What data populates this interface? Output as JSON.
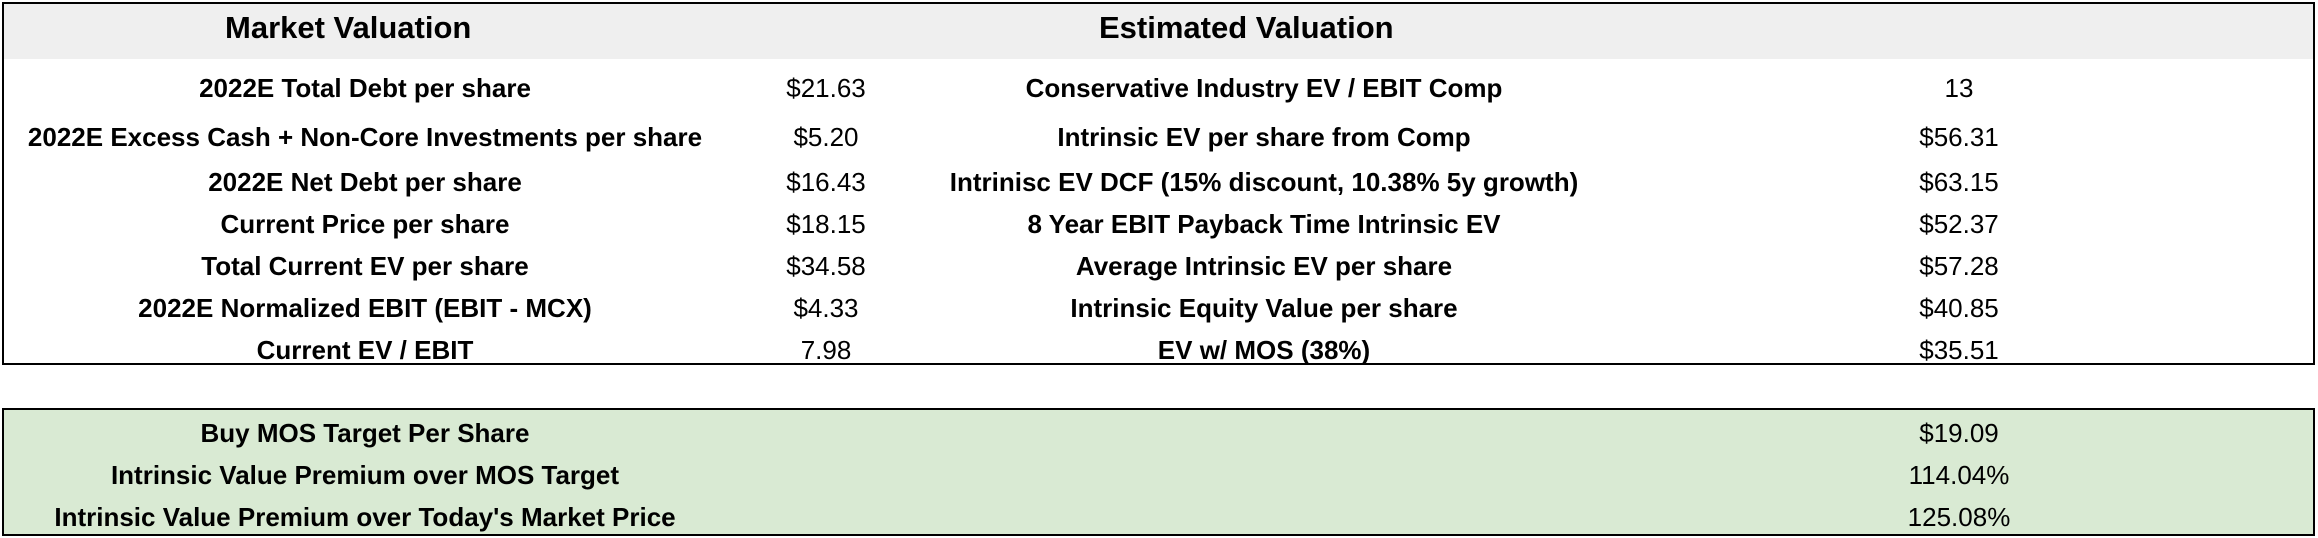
{
  "headers": {
    "market": "Market Valuation",
    "estimated": "Estimated Valuation"
  },
  "rows": [
    {
      "market_label": "2022E Total Debt per share",
      "market_value": "$21.63",
      "est_label": "Conservative Industry EV / EBIT Comp",
      "est_value": "13"
    },
    {
      "market_label": "2022E Excess Cash + Non-Core Investments per share",
      "market_value": "$5.20",
      "est_label": "Intrinsic EV per share from Comp",
      "est_value": "$56.31"
    },
    {
      "market_label": "2022E Net Debt per share",
      "market_value": "$16.43",
      "est_label": "Intrinisc EV DCF (15% discount, 10.38% 5y growth)",
      "est_value": "$63.15"
    },
    {
      "market_label": "Current Price per share",
      "market_value": "$18.15",
      "est_label": "8 Year EBIT Payback Time Intrinsic EV",
      "est_value": "$52.37"
    },
    {
      "market_label": "Total Current EV per share",
      "market_value": "$34.58",
      "est_label": "Average Intrinsic EV per share",
      "est_value": "$57.28"
    },
    {
      "market_label": "2022E Normalized EBIT (EBIT - MCX)",
      "market_value": "$4.33",
      "est_label": "Intrinsic Equity Value per share",
      "est_value": "$40.85"
    },
    {
      "market_label": "Current EV / EBIT",
      "market_value": "7.98",
      "est_label": "EV w/ MOS (38%)",
      "est_value": "$35.51"
    }
  ],
  "summary": [
    {
      "label": "Buy MOS Target Per Share",
      "value": "$19.09"
    },
    {
      "label": "Intrinsic Value Premium over MOS Target",
      "value": "114.04%"
    },
    {
      "label": "Intrinsic Value Premium over Today's Market Price",
      "value": "125.08%"
    }
  ],
  "colors": {
    "header_bg": "#efefef",
    "summary_bg": "#d9ead3",
    "border": "#000000"
  }
}
